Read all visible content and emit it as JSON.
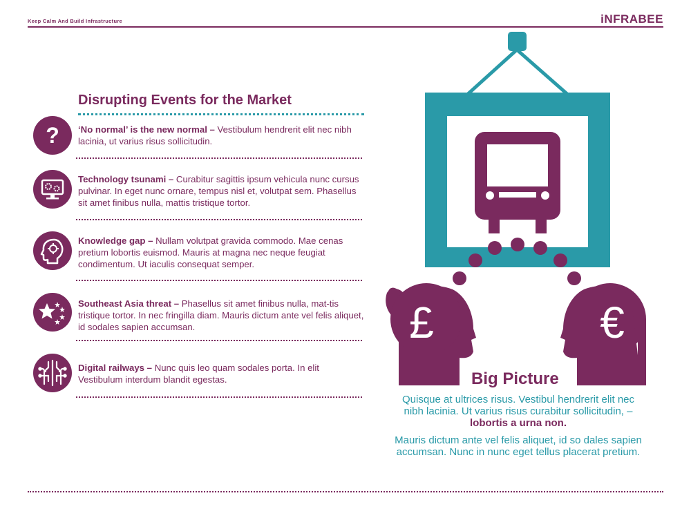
{
  "header": {
    "tagline": "Keep Calm And Build Infrastructure",
    "brand": "iNFRABEE"
  },
  "section": {
    "title": "Disrupting Events for the Market"
  },
  "events": [
    {
      "icon": "question-mark-icon",
      "title": "‘No normal’ is the new normal –",
      "body": "Vestibulum hendrerit elit nec nibh lacinia, ut varius risus sollicitudin."
    },
    {
      "icon": "monitor-gears-icon",
      "title": "Technology tsunami –",
      "body": "Curabitur sagittis ipsum vehicula nunc cursus pulvinar. In eget nunc ornare, tempus nisl et, volutpat sem. Phasellus sit amet finibus nulla, mattis tristique tortor."
    },
    {
      "icon": "head-brain-icon",
      "title": "Knowledge gap –",
      "body": "Nullam volutpat gravida commodo. Mae cenas pretium lobortis euismod. Mauris at magna nec neque feugiat condimentum. Ut iaculis consequat semper."
    },
    {
      "icon": "stars-icon",
      "title": "Southeast Asia threat –",
      "body": "Phasellus sit amet finibus nulla, mat-tis tristique tortor. In nec fringilla diam. Mauris dictum ante vel felis aliquet, id sodales sapien accumsan."
    },
    {
      "icon": "circuit-icon",
      "title": "Digital railways –",
      "body": "Nunc quis leo quam sodales porta. In elit Vestibulum interdum blandit egestas."
    }
  ],
  "big_picture": {
    "title": "Big Picture",
    "para1": "Quisque at ultrices risus. Vestibul hendrerit elit nec nibh lacinia. Ut varius risus curabitur sollicitudin,  –",
    "para1_bold": "lobortis a urna non.",
    "para2": "Mauris dictum ante vel felis aliquet, id so dales sapien accumsan. Nunc in nunc eget tellus placerat pretium.",
    "left_head_symbol": "£",
    "right_head_symbol": "€"
  },
  "colors": {
    "purple": "#7a2a5e",
    "teal": "#2a9aa8"
  }
}
